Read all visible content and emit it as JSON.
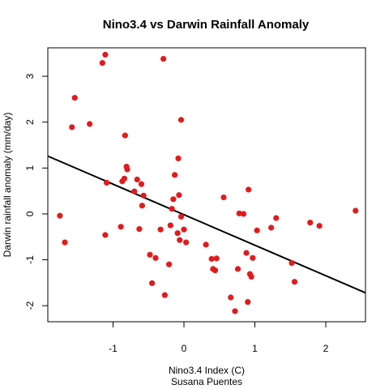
{
  "chart_data": {
    "type": "scatter",
    "title": "Nino3.4  vs Darwin Rainfall Anomaly",
    "xlabel": "Nino3.4 Index (C)",
    "xlabel_sub": "Susana Puentes",
    "ylabel": "Darwin rainfall anomaly (mm/day)",
    "xlim": [
      -1.92,
      2.56
    ],
    "ylim": [
      -2.35,
      3.62
    ],
    "x_ticks": [
      -1,
      0,
      1,
      2
    ],
    "x_tick_labels": [
      "-1",
      "0",
      "1",
      "2"
    ],
    "y_ticks": [
      -2,
      -1,
      0,
      1,
      2,
      3
    ],
    "y_tick_labels": [
      "-2",
      "-1",
      "0",
      "1",
      "2",
      "3"
    ],
    "grid": false,
    "point_color": "#e31a1c",
    "line_color": "#000000",
    "points": [
      {
        "x": -1.75,
        "y": -0.04
      },
      {
        "x": -1.68,
        "y": -0.62
      },
      {
        "x": -1.58,
        "y": 1.89
      },
      {
        "x": -1.54,
        "y": 2.53
      },
      {
        "x": -1.33,
        "y": 1.96
      },
      {
        "x": -1.15,
        "y": 3.29
      },
      {
        "x": -1.11,
        "y": 3.47
      },
      {
        "x": -1.11,
        "y": -0.46
      },
      {
        "x": -1.09,
        "y": 0.68
      },
      {
        "x": -0.89,
        "y": -0.28
      },
      {
        "x": -0.87,
        "y": 0.71
      },
      {
        "x": -0.84,
        "y": 0.77
      },
      {
        "x": -0.83,
        "y": 1.71
      },
      {
        "x": -0.81,
        "y": 1.03
      },
      {
        "x": -0.8,
        "y": 0.97
      },
      {
        "x": -0.7,
        "y": 0.49
      },
      {
        "x": -0.66,
        "y": 0.75
      },
      {
        "x": -0.63,
        "y": -0.33
      },
      {
        "x": -0.6,
        "y": 0.65
      },
      {
        "x": -0.59,
        "y": 0.18
      },
      {
        "x": -0.57,
        "y": 0.4
      },
      {
        "x": -0.48,
        "y": -0.89
      },
      {
        "x": -0.45,
        "y": -1.51
      },
      {
        "x": -0.4,
        "y": -0.96
      },
      {
        "x": -0.33,
        "y": -0.34
      },
      {
        "x": -0.29,
        "y": 3.38
      },
      {
        "x": -0.27,
        "y": -1.77
      },
      {
        "x": -0.21,
        "y": -1.1
      },
      {
        "x": -0.19,
        "y": -0.25
      },
      {
        "x": -0.17,
        "y": 0.11
      },
      {
        "x": -0.15,
        "y": 0.32
      },
      {
        "x": -0.13,
        "y": 0.85
      },
      {
        "x": -0.09,
        "y": -0.42
      },
      {
        "x": -0.08,
        "y": 1.21
      },
      {
        "x": -0.07,
        "y": 0.41
      },
      {
        "x": -0.06,
        "y": -0.57
      },
      {
        "x": -0.04,
        "y": -0.06
      },
      {
        "x": -0.04,
        "y": 2.05
      },
      {
        "x": 0.0,
        "y": -0.34
      },
      {
        "x": 0.03,
        "y": -0.62
      },
      {
        "x": 0.31,
        "y": -0.67
      },
      {
        "x": 0.39,
        "y": -0.98
      },
      {
        "x": 0.41,
        "y": -1.2
      },
      {
        "x": 0.44,
        "y": -1.23
      },
      {
        "x": 0.46,
        "y": -0.97
      },
      {
        "x": 0.56,
        "y": 0.36
      },
      {
        "x": 0.66,
        "y": -1.82
      },
      {
        "x": 0.72,
        "y": -2.12
      },
      {
        "x": 0.76,
        "y": -1.2
      },
      {
        "x": 0.78,
        "y": 0.01
      },
      {
        "x": 0.84,
        "y": 0.0
      },
      {
        "x": 0.88,
        "y": -0.85
      },
      {
        "x": 0.9,
        "y": -1.92
      },
      {
        "x": 0.91,
        "y": 0.53
      },
      {
        "x": 0.93,
        "y": -1.31
      },
      {
        "x": 0.95,
        "y": -1.37
      },
      {
        "x": 0.97,
        "y": -0.96
      },
      {
        "x": 1.03,
        "y": -0.36
      },
      {
        "x": 1.23,
        "y": -0.3
      },
      {
        "x": 1.3,
        "y": -0.09
      },
      {
        "x": 1.52,
        "y": -1.07
      },
      {
        "x": 1.56,
        "y": -1.48
      },
      {
        "x": 1.78,
        "y": -0.19
      },
      {
        "x": 1.91,
        "y": -0.26
      },
      {
        "x": 2.42,
        "y": 0.07
      }
    ],
    "regression_line": {
      "x0": -1.92,
      "y0": 1.26,
      "x1": 2.56,
      "y1": -1.72
    }
  }
}
